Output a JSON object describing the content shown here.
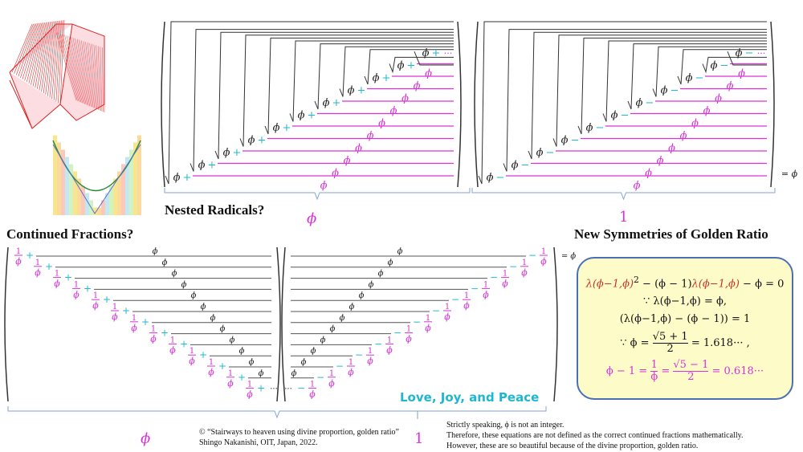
{
  "headings": {
    "nested_radicals": "Nested Radicals?",
    "continued_fractions": "Continued Fractions?",
    "new_symmetries": "New Symmetries of Golden Ratio",
    "love": "Love, Joy, and Peace"
  },
  "symbols": {
    "phi": "ϕ",
    "one": "1",
    "plus": "+",
    "minus": "−",
    "dots": "···",
    "equals_phi": "= ϕ"
  },
  "labels": {
    "radicals_left": "ϕ",
    "radicals_right": "1",
    "fractions_left": "ϕ",
    "fractions_right": "1"
  },
  "equations": {
    "line1_lambda": "λ(ϕ−1,ϕ)",
    "line1_sq": "2",
    "line1_mid": " − (ϕ − 1)",
    "line1_end": " − ϕ = 0",
    "line2": "∵ λ(ϕ−1,ϕ) = ϕ,",
    "line3": "(λ(ϕ−1,ϕ) − (ϕ − 1)) = 1",
    "line4_pre": "∵ ϕ =",
    "line4_num": "√5 + 1",
    "line4_den": "2",
    "line4_post": "= 1.618··· ,",
    "line5_pre": "ϕ − 1 =",
    "line5_f1_num": "1",
    "line5_f1_den": "ϕ",
    "line5_eq": "=",
    "line5_f2_num": "√5 − 1",
    "line5_f2_den": "2",
    "line5_post": "= 0.618···"
  },
  "credit": {
    "line1": "© “Stairways to heaven using divine proportion, golden ratio”",
    "line2": "Shingo Nakanishi,  OIT, Japan, 2022."
  },
  "disclaimer": {
    "line1": "Strictly speaking, ϕ is not an integer.",
    "line2": "Therefore,  these equations are not defined as the correct continued fractions mathematically.",
    "line3": "However, these are so beautiful because of the divine proportion, golden ratio."
  },
  "colors": {
    "magenta": "#d633d6",
    "cyan": "#1fb7d0",
    "box_fill": "#fdfbc8",
    "box_border": "#4a6fb5",
    "brace": "#7fa6d6"
  }
}
